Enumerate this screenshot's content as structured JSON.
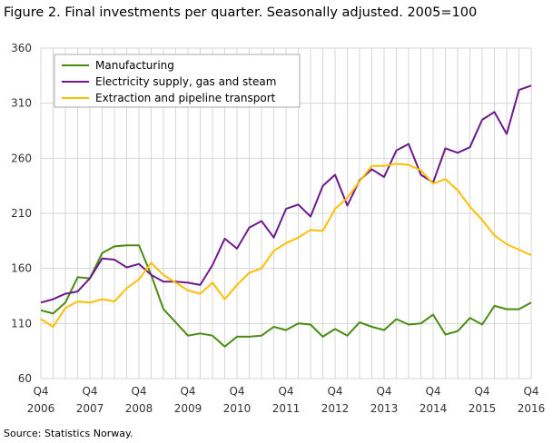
{
  "title": "Figure 2. Final investments per quarter. Seasonally adjusted. 2005=100",
  "source": "Source: Statistics Norway.",
  "chart_data": {
    "type": "line",
    "title": "Figure 2. Final investments per quarter. Seasonally adjusted. 2005=100",
    "ylim": [
      60,
      360
    ],
    "yticks": [
      60,
      110,
      160,
      210,
      260,
      310,
      360
    ],
    "grid": true,
    "legend_position": "top-left",
    "x": [
      "2006Q4",
      "2007Q1",
      "2007Q2",
      "2007Q3",
      "2007Q4",
      "2008Q1",
      "2008Q2",
      "2008Q3",
      "2008Q4",
      "2009Q1",
      "2009Q2",
      "2009Q3",
      "2009Q4",
      "2010Q1",
      "2010Q2",
      "2010Q3",
      "2010Q4",
      "2011Q1",
      "2011Q2",
      "2011Q3",
      "2011Q4",
      "2012Q1",
      "2012Q2",
      "2012Q3",
      "2012Q4",
      "2013Q1",
      "2013Q2",
      "2013Q3",
      "2013Q4",
      "2014Q1",
      "2014Q2",
      "2014Q3",
      "2014Q4",
      "2015Q1",
      "2015Q2",
      "2015Q3",
      "2015Q4",
      "2016Q1",
      "2016Q2",
      "2016Q3",
      "2016Q4"
    ],
    "xticks": [
      {
        "q": "Q4",
        "year": "2006"
      },
      {
        "q": "Q4",
        "year": "2007"
      },
      {
        "q": "Q4",
        "year": "2008"
      },
      {
        "q": "Q4",
        "year": "2009"
      },
      {
        "q": "Q4",
        "year": "2010"
      },
      {
        "q": "Q4",
        "year": "2011"
      },
      {
        "q": "Q4",
        "year": "2012"
      },
      {
        "q": "Q4",
        "year": "2013"
      },
      {
        "q": "Q4",
        "year": "2014"
      },
      {
        "q": "Q4",
        "year": "2015"
      },
      {
        "q": "Q4",
        "year": "2016"
      }
    ],
    "series": [
      {
        "name": "Manufacturing",
        "color": "#4a8c12",
        "values": [
          122,
          119,
          129,
          152,
          151,
          174,
          180,
          181,
          181,
          154,
          123,
          111,
          99,
          101,
          99,
          89,
          98,
          98,
          99,
          107,
          104,
          110,
          109,
          98,
          105,
          99,
          111,
          107,
          104,
          114,
          109,
          110,
          118,
          100,
          103,
          115,
          109,
          126,
          123,
          123,
          129
        ]
      },
      {
        "name": "Electricity supply, gas and steam",
        "color": "#6d1a8c",
        "values": [
          129,
          132,
          137,
          139,
          151,
          169,
          168,
          161,
          164,
          154,
          148,
          148,
          147,
          145,
          163,
          187,
          178,
          197,
          203,
          188,
          214,
          218,
          207,
          235,
          245,
          217,
          240,
          250,
          243,
          267,
          273,
          245,
          238,
          269,
          265,
          270,
          295,
          302,
          282,
          322,
          326
        ]
      },
      {
        "name": "Extraction and pipeline transport",
        "color": "#ffbe00",
        "values": [
          114,
          107,
          124,
          130,
          129,
          132,
          130,
          142,
          150,
          165,
          154,
          147,
          140,
          137,
          147,
          132,
          145,
          156,
          160,
          176,
          183,
          188,
          195,
          194,
          214,
          224,
          239,
          253,
          253,
          255,
          254,
          249,
          237,
          241,
          231,
          216,
          204,
          190,
          182,
          177,
          172
        ]
      }
    ]
  }
}
